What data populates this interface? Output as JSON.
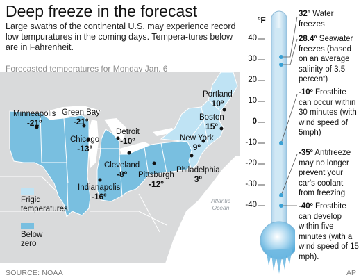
{
  "header": {
    "title": "Deep freeze in the forecast",
    "subtitle": "Large swaths of the continental U.S. may experience record low tempuratures in the coming days. Tempera-tures below are in Fahrenheit."
  },
  "map": {
    "title": "Forecasted temperatures for Monday Jan. 6",
    "ocean_label": "Atlantic Ocean",
    "cities": [
      {
        "name": "Minneapolis",
        "temp": "-21º"
      },
      {
        "name": "Green Bay",
        "temp": "-21º"
      },
      {
        "name": "Chicago",
        "temp": "-13º"
      },
      {
        "name": "Detroit",
        "temp": "-10º"
      },
      {
        "name": "Cleveland",
        "temp": "-8º"
      },
      {
        "name": "Indianapolis",
        "temp": "-16º"
      },
      {
        "name": "Pittsburgh",
        "temp": "-12º"
      },
      {
        "name": "Philadelphia",
        "temp": "3º"
      },
      {
        "name": "New York",
        "temp": "9º"
      },
      {
        "name": "Boston",
        "temp": "15º"
      },
      {
        "name": "Portland",
        "temp": "10º"
      }
    ],
    "legend": [
      {
        "label": "Frigid temperatures",
        "color": "#bfe3f4"
      },
      {
        "label": "Below zero",
        "color": "#79bfe0"
      }
    ]
  },
  "thermometer": {
    "unit": "ºF",
    "ticks": [
      "40",
      "30",
      "20",
      "10",
      "0",
      "-10",
      "-20",
      "-30",
      "-40"
    ],
    "annotations": [
      {
        "value": "32º",
        "text": " Water freezes"
      },
      {
        "value": "28.4º",
        "text": " Seawater freezes (based on an average salinity of 3.5 percent)"
      },
      {
        "value": "-10º",
        "text": " Frostbite can occur within 30 minutes (with wind speed of 5mph)"
      },
      {
        "value": "-35º",
        "text": " Antifreeze may no longer prevent your car's coolant from freezing"
      },
      {
        "value": "-40º",
        "text": " Frostbite can develop within five minutes (with a wind speed of 15 mph)."
      }
    ]
  },
  "footer": {
    "source": "SOURCE: NOAA",
    "credit": "AP"
  }
}
